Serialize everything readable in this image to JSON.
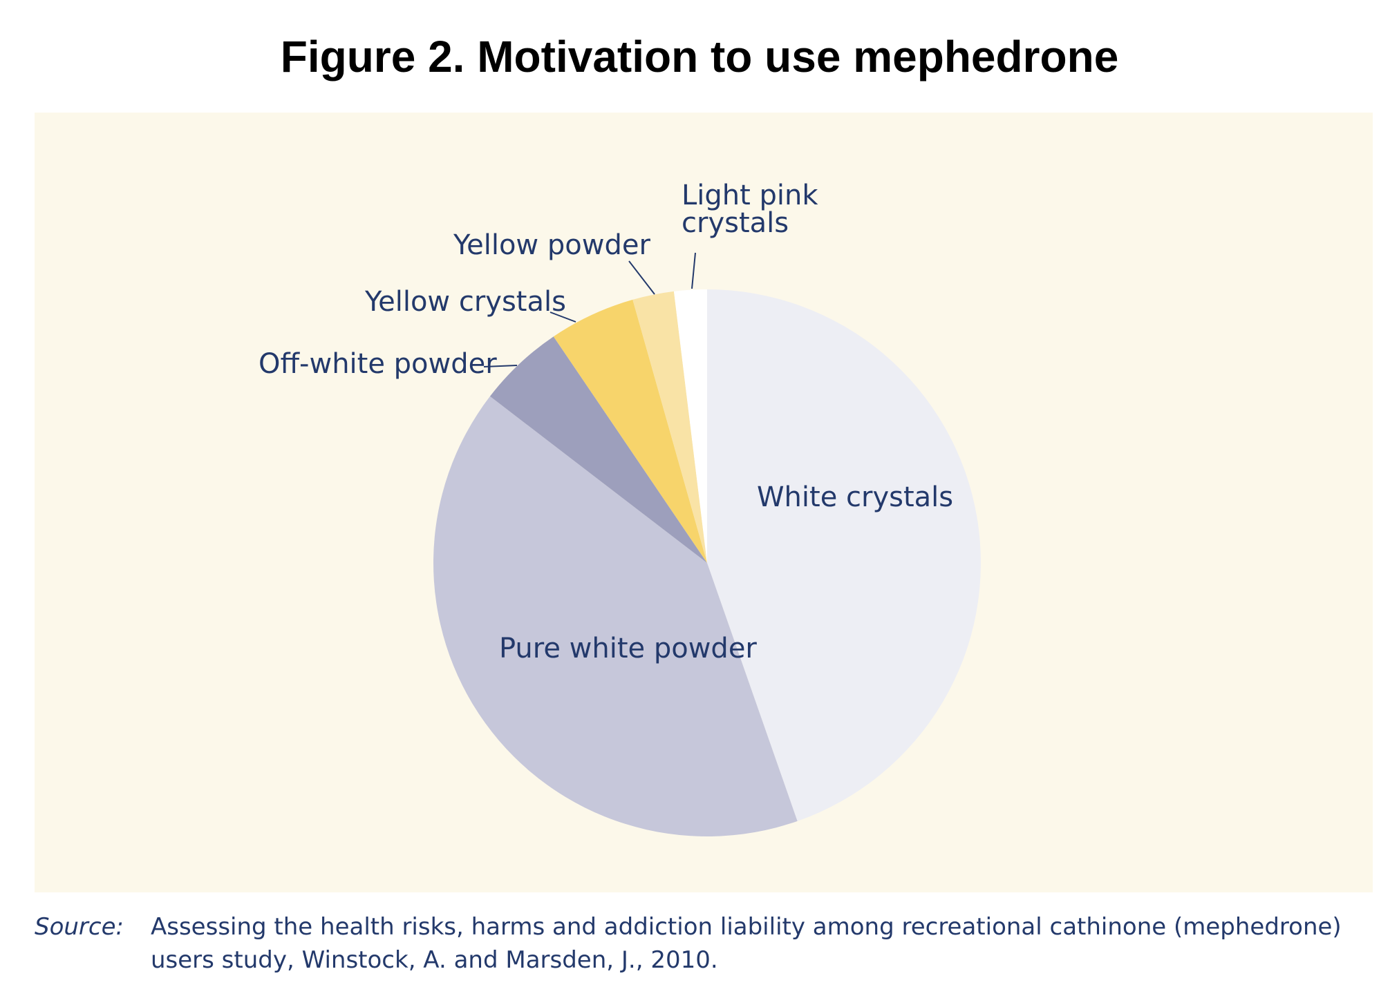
{
  "title": "Figure 2. Motivation to use mephedrone",
  "chart_data": {
    "type": "pie",
    "start_angle_deg": 0,
    "direction": "clockwise",
    "slices": [
      {
        "label": "White crystals",
        "value": 43.8,
        "color": "#edeef4"
      },
      {
        "label": "Pure white powder",
        "value": 40.0,
        "color": "#c6c7da"
      },
      {
        "label": "Off-white powder",
        "value": 5.0,
        "color": "#9d9fbc"
      },
      {
        "label": "Yellow crystals",
        "value": 5.0,
        "color": "#f7d46b"
      },
      {
        "label": "Yellow powder",
        "value": 2.4,
        "color": "#f9e3a6"
      },
      {
        "label": "Light pink crystals",
        "value": 1.9,
        "color": "#ffffff"
      }
    ]
  },
  "source": {
    "label": "Source:",
    "text": "Assessing the health risks, harms and addiction liability among recreational cathinone (mephedrone) users study, Winstock, A. and Marsden, J., 2010."
  },
  "colors": {
    "panel_background": "#fcf8ea",
    "label_text": "#23396b"
  }
}
